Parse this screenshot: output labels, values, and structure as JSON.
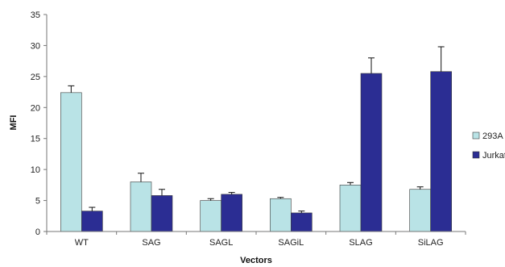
{
  "chart_data": {
    "type": "bar",
    "title": "",
    "xlabel": "Vectors",
    "ylabel": "MFI",
    "ylim": [
      0,
      35
    ],
    "yticks": [
      0,
      5,
      10,
      15,
      20,
      25,
      30,
      35
    ],
    "grid": false,
    "legend_position": "right",
    "categories": [
      "WT",
      "SAG",
      "SAGL",
      "SAGiL",
      "SLAG",
      "SiLAG"
    ],
    "series": [
      {
        "name": "293A",
        "color": "#b9e3e6",
        "values": [
          22.4,
          8.0,
          5.0,
          5.3,
          7.5,
          6.8
        ],
        "errors": [
          1.1,
          1.4,
          0.3,
          0.2,
          0.4,
          0.4
        ]
      },
      {
        "name": "Jurkat",
        "color": "#2b2d93",
        "values": [
          3.3,
          5.8,
          6.0,
          3.0,
          25.5,
          25.8
        ],
        "errors": [
          0.6,
          1.0,
          0.3,
          0.3,
          2.5,
          4.0
        ]
      }
    ]
  }
}
